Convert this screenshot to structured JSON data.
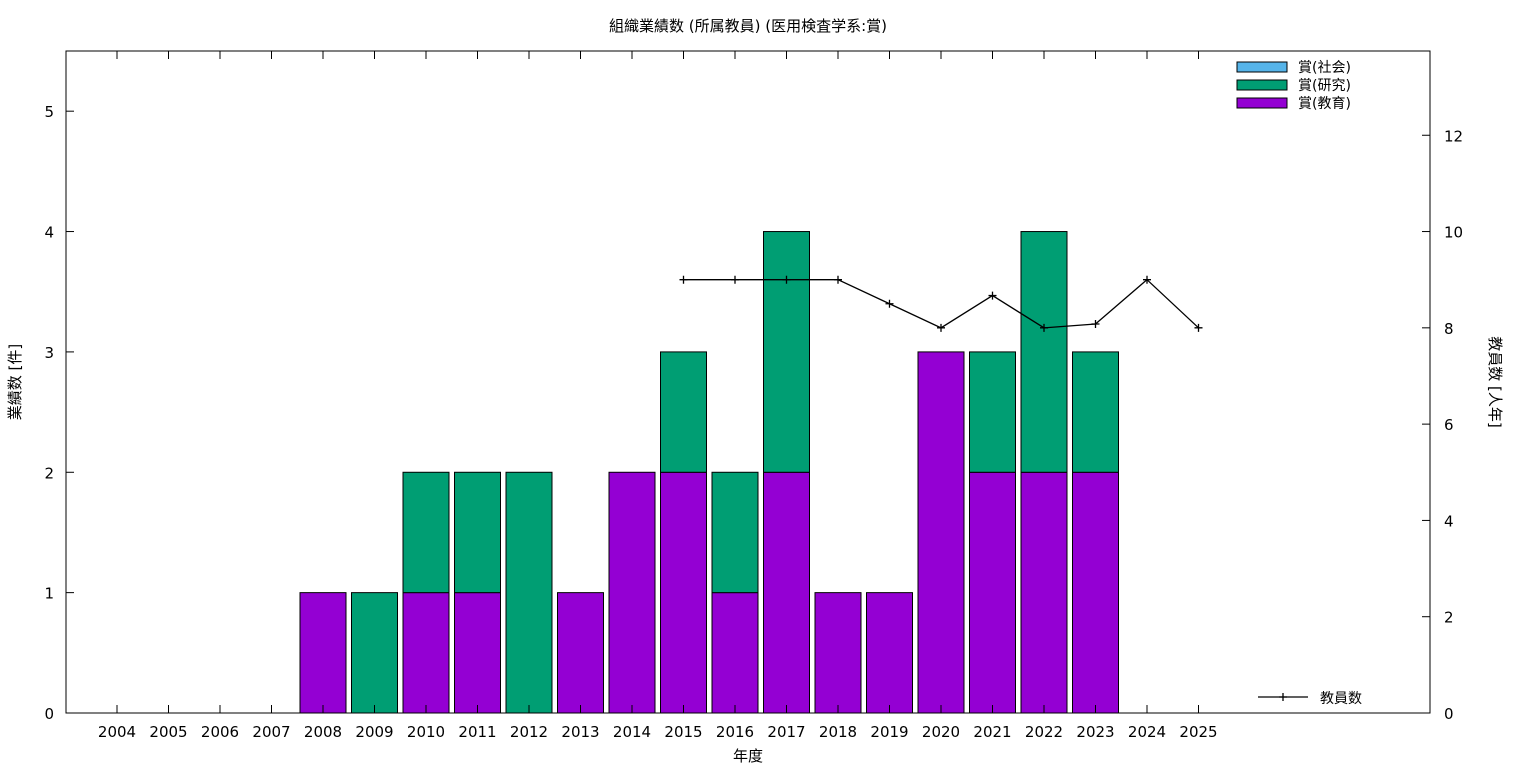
{
  "chart_data": {
    "type": "bar",
    "title": "組織業績数 (所属教員) (医用検査学系:賞)",
    "xlabel": "年度",
    "ylabel": "業績数 [件]",
    "y2label": "教員数 [人年]",
    "ylim": [
      0,
      5.5
    ],
    "y2lim": [
      0,
      13.75
    ],
    "yticks": [
      "0",
      "1",
      "2",
      "3",
      "4",
      "5"
    ],
    "y2ticks": [
      "0",
      "2",
      "4",
      "6",
      "8",
      "10",
      "12"
    ],
    "categories": [
      "2004",
      "2005",
      "2006",
      "2007",
      "2008",
      "2009",
      "2010",
      "2011",
      "2012",
      "2013",
      "2014",
      "2015",
      "2016",
      "2017",
      "2018",
      "2019",
      "2020",
      "2021",
      "2022",
      "2023",
      "2024",
      "2025"
    ],
    "stacked": true,
    "grid": false,
    "legend_position": "top-right",
    "series": [
      {
        "name": "賞(教育)",
        "color": "#9400d3",
        "values": [
          0,
          0,
          0,
          0,
          1,
          0,
          1,
          1,
          0,
          1,
          2,
          2,
          1,
          2,
          1,
          1,
          3,
          2,
          2,
          2,
          0,
          0
        ]
      },
      {
        "name": "賞(研究)",
        "color": "#009e73",
        "values": [
          0,
          0,
          0,
          0,
          0,
          1,
          1,
          1,
          2,
          0,
          0,
          1,
          1,
          2,
          0,
          0,
          0,
          1,
          2,
          1,
          0,
          0
        ]
      },
      {
        "name": "賞(社会)",
        "color": "#56b4e9",
        "values": [
          0,
          0,
          0,
          0,
          0,
          0,
          0,
          0,
          0,
          0,
          0,
          0,
          0,
          0,
          0,
          0,
          0,
          0,
          0,
          0,
          0,
          0
        ]
      }
    ],
    "line_series": {
      "name": "教員数",
      "color": "#000000",
      "axis": "y2",
      "x": [
        "2015",
        "2016",
        "2017",
        "2018",
        "2019",
        "2020",
        "2021",
        "2022",
        "2023",
        "2024",
        "2025"
      ],
      "values": [
        9,
        9,
        9,
        9,
        8.5,
        8,
        8.67,
        8,
        8.08,
        9,
        8
      ]
    }
  }
}
